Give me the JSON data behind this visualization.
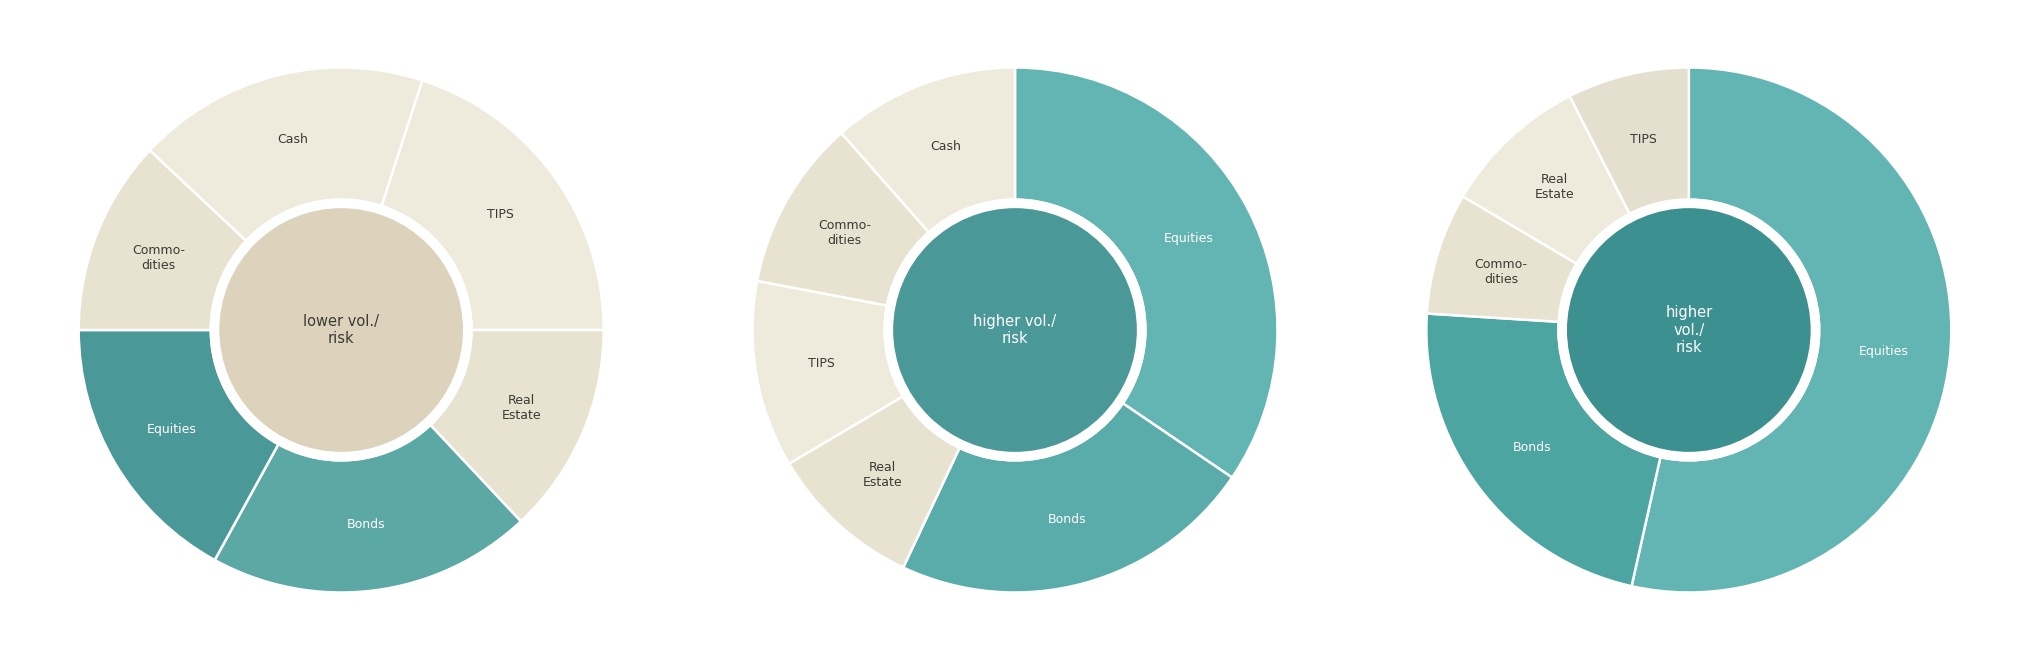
{
  "background_color": "#ffffff",
  "charts": [
    {
      "title": "lower vol./\nrisk",
      "title_color": "#3c3a35",
      "center_color": "#ddd3bc",
      "outer_slices": [
        {
          "label": "TIPS",
          "value": 0.2,
          "color": "#eeeadc",
          "text_color": "#3c3a35",
          "label_out": true
        },
        {
          "label": "Real\nEstate",
          "value": 0.13,
          "color": "#e8e2d0",
          "text_color": "#3c3a35",
          "label_out": true
        },
        {
          "label": "Bonds",
          "value": 0.2,
          "color": "#5ba8a5",
          "text_color": "#ffffff",
          "label_out": false
        },
        {
          "label": "Equities",
          "value": 0.17,
          "color": "#4a9898",
          "text_color": "#ffffff",
          "label_out": false
        },
        {
          "label": "Commo-\ndities",
          "value": 0.12,
          "color": "#e8e2d0",
          "text_color": "#3c3a35",
          "label_out": true
        },
        {
          "label": "Cash",
          "value": 0.18,
          "color": "#eeeadc",
          "text_color": "#3c3a35",
          "label_out": true
        }
      ],
      "start_angle": 72
    },
    {
      "title": "higher vol./\nrisk",
      "title_color": "#ffffff",
      "center_color": "#4a9898",
      "outer_slices": [
        {
          "label": "Equities",
          "value": 0.345,
          "color": "#62b5b2",
          "text_color": "#ffffff",
          "label_out": false
        },
        {
          "label": "Bonds",
          "value": 0.225,
          "color": "#5aacaa",
          "text_color": "#ffffff",
          "label_out": false
        },
        {
          "label": "Real\nEstate",
          "value": 0.095,
          "color": "#e8e2d0",
          "text_color": "#3c3a35",
          "label_out": true
        },
        {
          "label": "TIPS",
          "value": 0.115,
          "color": "#eeeadc",
          "text_color": "#3c3a35",
          "label_out": true
        },
        {
          "label": "Commo-\ndities",
          "value": 0.105,
          "color": "#e8e2d0",
          "text_color": "#3c3a35",
          "label_out": true
        },
        {
          "label": "Cash",
          "value": 0.115,
          "color": "#eeeadc",
          "text_color": "#3c3a35",
          "label_out": true
        }
      ],
      "start_angle": 90
    },
    {
      "title": "higher\nvol./\nrisk",
      "title_color": "#ffffff",
      "center_color": "#3d9090",
      "outer_slices": [
        {
          "label": "Equities",
          "value": 0.535,
          "color": "#62b5b2",
          "text_color": "#ffffff",
          "label_out": false
        },
        {
          "label": "Bonds",
          "value": 0.225,
          "color": "#4da5a2",
          "text_color": "#ffffff",
          "label_out": false
        },
        {
          "label": "Commo-\ndities",
          "value": 0.075,
          "color": "#e8e2d0",
          "text_color": "#3c3a35",
          "label_out": true
        },
        {
          "label": "Real\nEstate",
          "value": 0.09,
          "color": "#eeeadc",
          "text_color": "#3c3a35",
          "label_out": true
        },
        {
          "label": "TIPS",
          "value": 0.075,
          "color": "#e5dfd0",
          "text_color": "#3c3a35",
          "label_out": true
        }
      ],
      "start_angle": 90
    }
  ]
}
